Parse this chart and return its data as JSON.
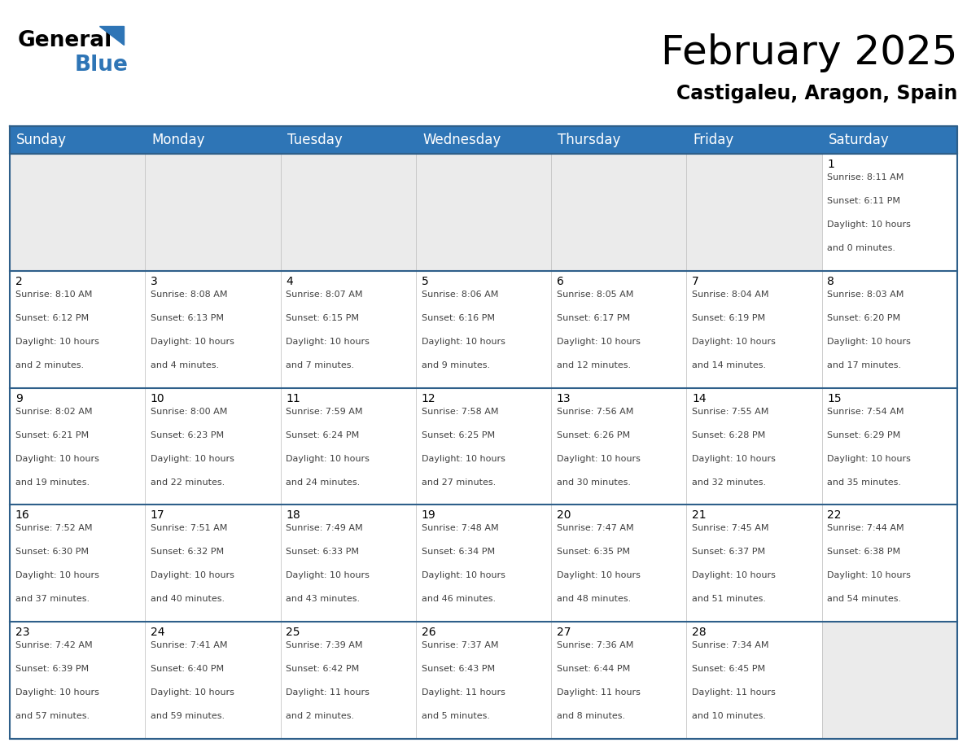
{
  "title": "February 2025",
  "subtitle": "Castigaleu, Aragon, Spain",
  "header_color": "#2E75B6",
  "header_text_color": "#FFFFFF",
  "cell_bg_white": "#FFFFFF",
  "cell_bg_gray": "#EBEBEB",
  "border_color": "#2E5F8A",
  "days_of_week": [
    "Sunday",
    "Monday",
    "Tuesday",
    "Wednesday",
    "Thursday",
    "Friday",
    "Saturday"
  ],
  "calendar_data": [
    [
      null,
      null,
      null,
      null,
      null,
      null,
      {
        "day": 1,
        "sunrise": "8:11 AM",
        "sunset": "6:11 PM",
        "daylight_hours": 10,
        "daylight_minutes": 0
      }
    ],
    [
      {
        "day": 2,
        "sunrise": "8:10 AM",
        "sunset": "6:12 PM",
        "daylight_hours": 10,
        "daylight_minutes": 2
      },
      {
        "day": 3,
        "sunrise": "8:08 AM",
        "sunset": "6:13 PM",
        "daylight_hours": 10,
        "daylight_minutes": 4
      },
      {
        "day": 4,
        "sunrise": "8:07 AM",
        "sunset": "6:15 PM",
        "daylight_hours": 10,
        "daylight_minutes": 7
      },
      {
        "day": 5,
        "sunrise": "8:06 AM",
        "sunset": "6:16 PM",
        "daylight_hours": 10,
        "daylight_minutes": 9
      },
      {
        "day": 6,
        "sunrise": "8:05 AM",
        "sunset": "6:17 PM",
        "daylight_hours": 10,
        "daylight_minutes": 12
      },
      {
        "day": 7,
        "sunrise": "8:04 AM",
        "sunset": "6:19 PM",
        "daylight_hours": 10,
        "daylight_minutes": 14
      },
      {
        "day": 8,
        "sunrise": "8:03 AM",
        "sunset": "6:20 PM",
        "daylight_hours": 10,
        "daylight_minutes": 17
      }
    ],
    [
      {
        "day": 9,
        "sunrise": "8:02 AM",
        "sunset": "6:21 PM",
        "daylight_hours": 10,
        "daylight_minutes": 19
      },
      {
        "day": 10,
        "sunrise": "8:00 AM",
        "sunset": "6:23 PM",
        "daylight_hours": 10,
        "daylight_minutes": 22
      },
      {
        "day": 11,
        "sunrise": "7:59 AM",
        "sunset": "6:24 PM",
        "daylight_hours": 10,
        "daylight_minutes": 24
      },
      {
        "day": 12,
        "sunrise": "7:58 AM",
        "sunset": "6:25 PM",
        "daylight_hours": 10,
        "daylight_minutes": 27
      },
      {
        "day": 13,
        "sunrise": "7:56 AM",
        "sunset": "6:26 PM",
        "daylight_hours": 10,
        "daylight_minutes": 30
      },
      {
        "day": 14,
        "sunrise": "7:55 AM",
        "sunset": "6:28 PM",
        "daylight_hours": 10,
        "daylight_minutes": 32
      },
      {
        "day": 15,
        "sunrise": "7:54 AM",
        "sunset": "6:29 PM",
        "daylight_hours": 10,
        "daylight_minutes": 35
      }
    ],
    [
      {
        "day": 16,
        "sunrise": "7:52 AM",
        "sunset": "6:30 PM",
        "daylight_hours": 10,
        "daylight_minutes": 37
      },
      {
        "day": 17,
        "sunrise": "7:51 AM",
        "sunset": "6:32 PM",
        "daylight_hours": 10,
        "daylight_minutes": 40
      },
      {
        "day": 18,
        "sunrise": "7:49 AM",
        "sunset": "6:33 PM",
        "daylight_hours": 10,
        "daylight_minutes": 43
      },
      {
        "day": 19,
        "sunrise": "7:48 AM",
        "sunset": "6:34 PM",
        "daylight_hours": 10,
        "daylight_minutes": 46
      },
      {
        "day": 20,
        "sunrise": "7:47 AM",
        "sunset": "6:35 PM",
        "daylight_hours": 10,
        "daylight_minutes": 48
      },
      {
        "day": 21,
        "sunrise": "7:45 AM",
        "sunset": "6:37 PM",
        "daylight_hours": 10,
        "daylight_minutes": 51
      },
      {
        "day": 22,
        "sunrise": "7:44 AM",
        "sunset": "6:38 PM",
        "daylight_hours": 10,
        "daylight_minutes": 54
      }
    ],
    [
      {
        "day": 23,
        "sunrise": "7:42 AM",
        "sunset": "6:39 PM",
        "daylight_hours": 10,
        "daylight_minutes": 57
      },
      {
        "day": 24,
        "sunrise": "7:41 AM",
        "sunset": "6:40 PM",
        "daylight_hours": 10,
        "daylight_minutes": 59
      },
      {
        "day": 25,
        "sunrise": "7:39 AM",
        "sunset": "6:42 PM",
        "daylight_hours": 11,
        "daylight_minutes": 2
      },
      {
        "day": 26,
        "sunrise": "7:37 AM",
        "sunset": "6:43 PM",
        "daylight_hours": 11,
        "daylight_minutes": 5
      },
      {
        "day": 27,
        "sunrise": "7:36 AM",
        "sunset": "6:44 PM",
        "daylight_hours": 11,
        "daylight_minutes": 8
      },
      {
        "day": 28,
        "sunrise": "7:34 AM",
        "sunset": "6:45 PM",
        "daylight_hours": 11,
        "daylight_minutes": 10
      },
      null
    ]
  ],
  "logo_blue_color": "#2E75B6",
  "title_fontsize": 36,
  "subtitle_fontsize": 17,
  "header_fontsize": 12,
  "day_number_fontsize": 10,
  "cell_text_fontsize": 8
}
